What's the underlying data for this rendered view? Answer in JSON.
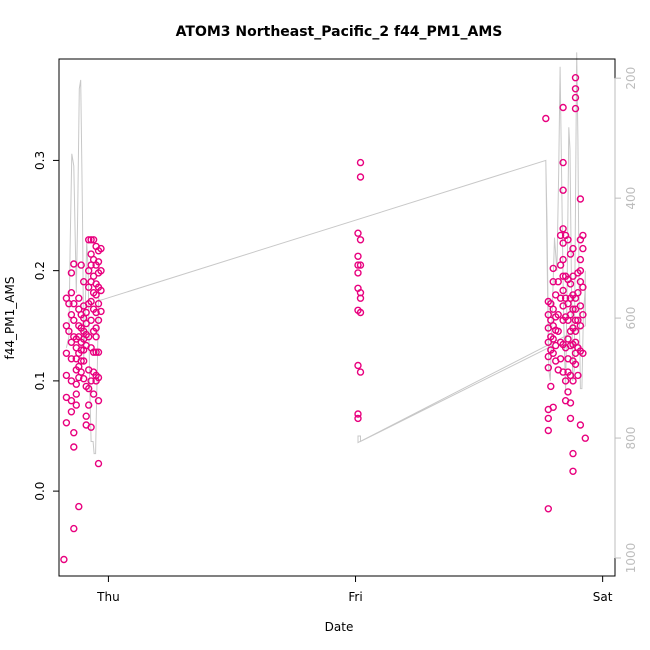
{
  "chart_data": {
    "type": "scatter",
    "title": "ATOM3 Northeast_Pacific_2 f44_PM1_AMS",
    "xlabel": "Date",
    "ylabel": "f44_PM1_AMS",
    "x_ticks": [
      "Thu",
      "Fri",
      "Sat"
    ],
    "x_range_days": [
      -0.2,
      2.05
    ],
    "ylim": [
      -0.077,
      0.392
    ],
    "y_ticks": [
      0.0,
      0.1,
      0.2,
      0.3
    ],
    "y_tick_labels": [
      "0.0",
      "0.1",
      "0.2",
      "0.3"
    ],
    "y2_lim": [
      1030,
      168
    ],
    "y2_ticks": [
      200,
      400,
      600,
      800,
      1000
    ],
    "y2_tick_labels": [
      "200",
      "400",
      "600",
      "800",
      "1000"
    ],
    "colors": {
      "points": "#e8007e",
      "line": "#c8c8c8"
    },
    "grid": false,
    "points_thu": [
      [
        -0.18,
        -0.062
      ],
      [
        -0.17,
        0.175
      ],
      [
        -0.17,
        0.15
      ],
      [
        -0.17,
        0.125
      ],
      [
        -0.17,
        0.105
      ],
      [
        -0.17,
        0.085
      ],
      [
        -0.17,
        0.062
      ],
      [
        -0.16,
        0.17
      ],
      [
        -0.16,
        0.145
      ],
      [
        -0.15,
        0.12
      ],
      [
        -0.15,
        0.135
      ],
      [
        -0.15,
        0.16
      ],
      [
        -0.15,
        0.18
      ],
      [
        -0.15,
        0.198
      ],
      [
        -0.15,
        0.1
      ],
      [
        -0.15,
        0.082
      ],
      [
        -0.15,
        0.072
      ],
      [
        -0.14,
        0.04
      ],
      [
        -0.14,
        0.053
      ],
      [
        -0.14,
        0.14
      ],
      [
        -0.14,
        -0.034
      ],
      [
        -0.14,
        0.206
      ],
      [
        -0.14,
        0.17
      ],
      [
        -0.14,
        0.155
      ],
      [
        -0.13,
        0.138
      ],
      [
        -0.13,
        0.13
      ],
      [
        -0.13,
        0.12
      ],
      [
        -0.13,
        0.11
      ],
      [
        -0.13,
        0.097
      ],
      [
        -0.13,
        0.088
      ],
      [
        -0.13,
        0.078
      ],
      [
        -0.12,
        -0.014
      ],
      [
        -0.12,
        0.175
      ],
      [
        -0.12,
        0.165
      ],
      [
        -0.12,
        0.15
      ],
      [
        -0.12,
        0.14
      ],
      [
        -0.12,
        0.125
      ],
      [
        -0.12,
        0.113
      ],
      [
        -0.12,
        0.103
      ],
      [
        -0.11,
        0.16
      ],
      [
        -0.11,
        0.148
      ],
      [
        -0.11,
        0.135
      ],
      [
        -0.11,
        0.128
      ],
      [
        -0.11,
        0.118
      ],
      [
        -0.11,
        0.108
      ],
      [
        -0.11,
        0.205
      ],
      [
        -0.1,
        0.19
      ],
      [
        -0.1,
        0.168
      ],
      [
        -0.1,
        0.157
      ],
      [
        -0.1,
        0.145
      ],
      [
        -0.1,
        0.138
      ],
      [
        -0.1,
        0.128
      ],
      [
        -0.1,
        0.118
      ],
      [
        -0.1,
        0.102
      ],
      [
        -0.09,
        0.06
      ],
      [
        -0.09,
        0.068
      ],
      [
        -0.09,
        0.095
      ],
      [
        -0.09,
        0.132
      ],
      [
        -0.09,
        0.142
      ],
      [
        -0.09,
        0.152
      ],
      [
        -0.09,
        0.162
      ],
      [
        -0.08,
        0.078
      ],
      [
        -0.08,
        0.093
      ],
      [
        -0.08,
        0.11
      ],
      [
        -0.08,
        0.14
      ],
      [
        -0.08,
        0.17
      ],
      [
        -0.08,
        0.185
      ],
      [
        -0.08,
        0.2
      ],
      [
        -0.08,
        0.228
      ],
      [
        -0.07,
        0.205
      ],
      [
        -0.07,
        0.215
      ],
      [
        -0.07,
        0.228
      ],
      [
        -0.07,
        0.19
      ],
      [
        -0.07,
        0.172
      ],
      [
        -0.07,
        0.155
      ],
      [
        -0.07,
        0.13
      ],
      [
        -0.07,
        0.1
      ],
      [
        -0.07,
        0.058
      ],
      [
        -0.06,
        0.228
      ],
      [
        -0.06,
        0.21
      ],
      [
        -0.06,
        0.195
      ],
      [
        -0.06,
        0.18
      ],
      [
        -0.06,
        0.165
      ],
      [
        -0.06,
        0.145
      ],
      [
        -0.06,
        0.126
      ],
      [
        -0.06,
        0.108
      ],
      [
        -0.06,
        0.088
      ],
      [
        -0.05,
        0.222
      ],
      [
        -0.05,
        0.205
      ],
      [
        -0.05,
        0.188
      ],
      [
        -0.05,
        0.178
      ],
      [
        -0.05,
        0.162
      ],
      [
        -0.05,
        0.148
      ],
      [
        -0.05,
        0.14
      ],
      [
        -0.05,
        0.126
      ],
      [
        -0.05,
        0.105
      ],
      [
        -0.05,
        0.1
      ],
      [
        -0.04,
        0.218
      ],
      [
        -0.04,
        0.208
      ],
      [
        -0.04,
        0.198
      ],
      [
        -0.04,
        0.185
      ],
      [
        -0.04,
        0.17
      ],
      [
        -0.04,
        0.155
      ],
      [
        -0.04,
        0.126
      ],
      [
        -0.04,
        0.103
      ],
      [
        -0.04,
        0.082
      ],
      [
        -0.04,
        0.025
      ],
      [
        -0.03,
        0.22
      ],
      [
        -0.03,
        0.2
      ],
      [
        -0.03,
        0.182
      ],
      [
        -0.03,
        0.163
      ]
    ],
    "points_fri": [
      [
        1.02,
        0.298
      ],
      [
        1.02,
        0.285
      ],
      [
        1.01,
        0.234
      ],
      [
        1.02,
        0.228
      ],
      [
        1.01,
        0.213
      ],
      [
        1.01,
        0.205
      ],
      [
        1.02,
        0.205
      ],
      [
        1.01,
        0.198
      ],
      [
        1.01,
        0.184
      ],
      [
        1.02,
        0.18
      ],
      [
        1.02,
        0.175
      ],
      [
        1.01,
        0.164
      ],
      [
        1.02,
        0.162
      ],
      [
        1.01,
        0.114
      ],
      [
        1.02,
        0.108
      ],
      [
        1.01,
        0.07
      ],
      [
        1.01,
        0.066
      ]
    ],
    "points_sat": [
      [
        1.77,
        0.338
      ],
      [
        1.78,
        0.172
      ],
      [
        1.78,
        0.16
      ],
      [
        1.78,
        0.148
      ],
      [
        1.78,
        0.135
      ],
      [
        1.78,
        0.122
      ],
      [
        1.78,
        0.112
      ],
      [
        1.78,
        0.074
      ],
      [
        1.78,
        0.066
      ],
      [
        1.78,
        0.055
      ],
      [
        1.78,
        -0.016
      ],
      [
        1.79,
        0.17
      ],
      [
        1.79,
        0.155
      ],
      [
        1.79,
        0.14
      ],
      [
        1.79,
        0.128
      ],
      [
        1.79,
        0.095
      ],
      [
        1.8,
        0.202
      ],
      [
        1.8,
        0.19
      ],
      [
        1.8,
        0.165
      ],
      [
        1.8,
        0.15
      ],
      [
        1.8,
        0.138
      ],
      [
        1.8,
        0.125
      ],
      [
        1.8,
        0.076
      ],
      [
        1.81,
        0.178
      ],
      [
        1.81,
        0.158
      ],
      [
        1.81,
        0.146
      ],
      [
        1.81,
        0.132
      ],
      [
        1.81,
        0.118
      ],
      [
        1.82,
        0.19
      ],
      [
        1.82,
        0.16
      ],
      [
        1.82,
        0.145
      ],
      [
        1.82,
        0.11
      ],
      [
        1.83,
        0.232
      ],
      [
        1.83,
        0.205
      ],
      [
        1.83,
        0.175
      ],
      [
        1.83,
        0.135
      ],
      [
        1.83,
        0.12
      ],
      [
        1.84,
        0.348
      ],
      [
        1.84,
        0.298
      ],
      [
        1.84,
        0.273
      ],
      [
        1.84,
        0.238
      ],
      [
        1.84,
        0.225
      ],
      [
        1.84,
        0.21
      ],
      [
        1.84,
        0.195
      ],
      [
        1.84,
        0.182
      ],
      [
        1.84,
        0.168
      ],
      [
        1.84,
        0.155
      ],
      [
        1.84,
        0.133
      ],
      [
        1.84,
        0.108
      ],
      [
        1.85,
        0.232
      ],
      [
        1.85,
        0.195
      ],
      [
        1.85,
        0.175
      ],
      [
        1.85,
        0.158
      ],
      [
        1.85,
        0.13
      ],
      [
        1.85,
        0.1
      ],
      [
        1.85,
        0.082
      ],
      [
        1.86,
        0.228
      ],
      [
        1.86,
        0.192
      ],
      [
        1.86,
        0.17
      ],
      [
        1.86,
        0.155
      ],
      [
        1.86,
        0.138
      ],
      [
        1.86,
        0.12
      ],
      [
        1.86,
        0.108
      ],
      [
        1.86,
        0.09
      ],
      [
        1.87,
        0.215
      ],
      [
        1.87,
        0.188
      ],
      [
        1.87,
        0.175
      ],
      [
        1.87,
        0.16
      ],
      [
        1.87,
        0.145
      ],
      [
        1.87,
        0.132
      ],
      [
        1.87,
        0.105
      ],
      [
        1.87,
        0.08
      ],
      [
        1.87,
        0.066
      ],
      [
        1.88,
        0.22
      ],
      [
        1.88,
        0.195
      ],
      [
        1.88,
        0.178
      ],
      [
        1.88,
        0.165
      ],
      [
        1.88,
        0.148
      ],
      [
        1.88,
        0.133
      ],
      [
        1.88,
        0.118
      ],
      [
        1.88,
        0.1
      ],
      [
        1.88,
        0.034
      ],
      [
        1.88,
        0.018
      ],
      [
        1.89,
        0.375
      ],
      [
        1.89,
        0.365
      ],
      [
        1.89,
        0.357
      ],
      [
        1.89,
        0.347
      ],
      [
        1.89,
        0.175
      ],
      [
        1.89,
        0.165
      ],
      [
        1.89,
        0.155
      ],
      [
        1.89,
        0.145
      ],
      [
        1.89,
        0.135
      ],
      [
        1.89,
        0.125
      ],
      [
        1.89,
        0.115
      ],
      [
        1.9,
        0.198
      ],
      [
        1.9,
        0.18
      ],
      [
        1.9,
        0.155
      ],
      [
        1.9,
        0.13
      ],
      [
        1.9,
        0.105
      ],
      [
        1.91,
        0.265
      ],
      [
        1.91,
        0.228
      ],
      [
        1.91,
        0.21
      ],
      [
        1.91,
        0.2
      ],
      [
        1.91,
        0.19
      ],
      [
        1.91,
        0.168
      ],
      [
        1.91,
        0.15
      ],
      [
        1.91,
        0.127
      ],
      [
        1.91,
        0.06
      ],
      [
        1.92,
        0.232
      ],
      [
        1.92,
        0.22
      ],
      [
        1.92,
        0.185
      ],
      [
        1.92,
        0.16
      ],
      [
        1.92,
        0.125
      ],
      [
        1.93,
        0.048
      ]
    ],
    "gray_line": [
      [
        -0.17,
        0.13
      ],
      [
        -0.16,
        0.14
      ],
      [
        -0.155,
        0.22
      ],
      [
        -0.148,
        0.306
      ],
      [
        -0.14,
        0.295
      ],
      [
        -0.13,
        0.18
      ],
      [
        -0.125,
        0.24
      ],
      [
        -0.118,
        0.365
      ],
      [
        -0.112,
        0.373
      ],
      [
        -0.105,
        0.25
      ],
      [
        -0.1,
        0.12
      ],
      [
        -0.095,
        0.15
      ],
      [
        -0.088,
        0.226
      ],
      [
        -0.082,
        0.2
      ],
      [
        -0.076,
        0.1
      ],
      [
        -0.07,
        0.045
      ],
      [
        -0.062,
        0.045
      ],
      [
        -0.058,
        0.034
      ],
      [
        -0.052,
        0.034
      ],
      [
        -0.05,
        0.06
      ],
      [
        -0.045,
        0.11
      ],
      [
        -0.04,
        0.175
      ],
      [
        -0.035,
        0.173
      ],
      [
        -0.02,
        0.174
      ],
      [
        1.77,
        0.3
      ],
      [
        1.775,
        0.245
      ],
      [
        1.782,
        0.11
      ],
      [
        1.788,
        0.1
      ],
      [
        1.795,
        0.155
      ],
      [
        1.805,
        0.23
      ],
      [
        1.815,
        0.2
      ],
      [
        1.822,
        0.29
      ],
      [
        1.828,
        0.385
      ],
      [
        1.833,
        0.3
      ],
      [
        1.838,
        0.22
      ],
      [
        1.843,
        0.15
      ],
      [
        1.85,
        0.09
      ],
      [
        1.857,
        0.2
      ],
      [
        1.863,
        0.33
      ],
      [
        1.868,
        0.31
      ],
      [
        1.873,
        0.2
      ],
      [
        1.879,
        0.1
      ],
      [
        1.885,
        0.11
      ],
      [
        1.89,
        0.26
      ],
      [
        1.895,
        0.398
      ],
      [
        1.9,
        0.32
      ],
      [
        1.905,
        0.17
      ],
      [
        1.91,
        0.093
      ],
      [
        1.916,
        0.093
      ],
      [
        1.922,
        0.16
      ],
      [
        1.928,
        0.18
      ],
      [
        1.93,
        0.2
      ],
      [
        1.93,
        0.15
      ],
      [
        1.01,
        0.044
      ],
      [
        1.01,
        0.05
      ],
      [
        1.02,
        0.05
      ],
      [
        1.02,
        0.045
      ],
      [
        1.78,
        0.13
      ],
      [
        1.77,
        0.3
      ],
      [
        -0.02,
        0.174
      ]
    ]
  }
}
